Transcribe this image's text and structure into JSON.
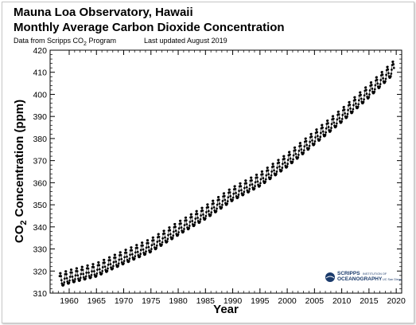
{
  "chart_data": {
    "type": "scatter",
    "title": "Mauna Loa Observatory, Hawaii",
    "subtitle": "Monthly Average Carbon Dioxide Concentration",
    "source_prefix": "Data from Scripps CO",
    "source_subscript": "2",
    "source_suffix": " Program",
    "updated": "Last updated August 2019",
    "xlabel": "Year",
    "ylabel_prefix": "CO",
    "ylabel_subscript": "2",
    "ylabel_suffix": " Concentration (ppm)",
    "xlim": [
      1956.5,
      2021.0
    ],
    "ylim": [
      310,
      420
    ],
    "xticks": [
      "1960",
      "1965",
      "1970",
      "1975",
      "1980",
      "1985",
      "1990",
      "1995",
      "2000",
      "2005",
      "2010",
      "2015",
      "2020"
    ],
    "yticks": [
      "310",
      "320",
      "330",
      "340",
      "350",
      "360",
      "370",
      "380",
      "390",
      "400",
      "410",
      "420"
    ],
    "grid": false,
    "marker_color": "#000000",
    "line_color": "#000000",
    "series": [
      {
        "x_start": 1958.25,
        "x_end": 2019.58,
        "x_step_months": 1,
        "trend_annual_points": [
          [
            1958,
            315.2
          ],
          [
            1960,
            316.9
          ],
          [
            1965,
            320.0
          ],
          [
            1970,
            325.7
          ],
          [
            1975,
            331.1
          ],
          [
            1980,
            338.7
          ],
          [
            1985,
            346.0
          ],
          [
            1990,
            354.4
          ],
          [
            1995,
            360.9
          ],
          [
            2000,
            369.6
          ],
          [
            2005,
            379.8
          ],
          [
            2010,
            389.9
          ],
          [
            2015,
            401.0
          ],
          [
            2019.6,
            411.8
          ]
        ],
        "seasonal_amplitude_ppm": 3.1,
        "seasonal_peak_month": "May"
      }
    ]
  },
  "logo": {
    "name": "SCRIPPS",
    "line2": "OCEANOGRAPHY",
    "small1": "INSTITUTION OF",
    "small2": "UC San Diego"
  }
}
